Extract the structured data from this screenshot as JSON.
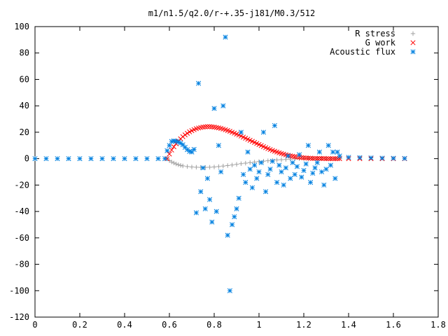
{
  "chart_data": {
    "type": "scatter",
    "title": "m1/n1.5/q2.0/r-+.35-j181/M0.3/512",
    "xlabel": "",
    "ylabel": "",
    "xlim": [
      0,
      1.8
    ],
    "ylim": [
      -120,
      100
    ],
    "x_ticks": [
      "0",
      "0.2",
      "0.4",
      "0.6",
      "0.8",
      "1",
      "1.2",
      "1.4",
      "1.6",
      "1.8"
    ],
    "y_ticks": [
      "-120",
      "-100",
      "-80",
      "-60",
      "-40",
      "-20",
      "0",
      "20",
      "40",
      "60",
      "80",
      "100"
    ],
    "grid": false,
    "legend_position": "top-right",
    "series": [
      {
        "name": "R stress",
        "marker": "plus",
        "color": "#a0a0a0",
        "x": [
          0.59,
          0.6,
          0.61,
          0.62,
          0.63,
          0.64,
          0.65,
          0.66,
          0.68,
          0.7,
          0.72,
          0.74,
          0.76,
          0.78,
          0.8,
          0.82,
          0.84,
          0.86,
          0.88,
          0.9,
          0.92,
          0.94,
          0.96,
          0.98,
          1.0,
          1.02,
          1.04,
          1.06,
          1.08,
          1.1,
          1.12,
          1.14,
          1.16,
          1.18,
          1.2,
          1.22,
          1.24,
          1.26,
          1.28,
          1.3,
          1.32,
          1.34,
          1.36
        ],
        "y": [
          0,
          -1.5,
          -2.5,
          -3.3,
          -4,
          -4.6,
          -5.1,
          -5.5,
          -6,
          -6.3,
          -6.5,
          -6.6,
          -6.6,
          -6.5,
          -6.3,
          -6,
          -5.6,
          -5.2,
          -4.8,
          -4.3,
          -3.8,
          -3.4,
          -3,
          -2.6,
          -2.2,
          -1.9,
          -1.6,
          -1.3,
          -1,
          -0.8,
          -0.6,
          -0.4,
          -0.2,
          0,
          0.2,
          0.3,
          0.4,
          0.4,
          0.4,
          0.3,
          0.2,
          0.1,
          0
        ]
      },
      {
        "name": "G work",
        "marker": "cross",
        "color": "#ff0000",
        "x": [
          0.59,
          0.6,
          0.61,
          0.62,
          0.63,
          0.64,
          0.65,
          0.66,
          0.67,
          0.68,
          0.69,
          0.7,
          0.71,
          0.72,
          0.73,
          0.74,
          0.75,
          0.76,
          0.77,
          0.78,
          0.79,
          0.8,
          0.81,
          0.82,
          0.83,
          0.84,
          0.85,
          0.86,
          0.87,
          0.88,
          0.89,
          0.9,
          0.91,
          0.92,
          0.93,
          0.94,
          0.95,
          0.96,
          0.97,
          0.98,
          0.99,
          1.0,
          1.01,
          1.02,
          1.03,
          1.04,
          1.05,
          1.06,
          1.07,
          1.08,
          1.09,
          1.1,
          1.11,
          1.12,
          1.13,
          1.14,
          1.15,
          1.16,
          1.17,
          1.18,
          1.19,
          1.2,
          1.21,
          1.22,
          1.23,
          1.24,
          1.25,
          1.26,
          1.27,
          1.28,
          1.29,
          1.3,
          1.31,
          1.32,
          1.33,
          1.34,
          1.35,
          1.36,
          1.4,
          1.45,
          1.5,
          1.55,
          1.6,
          1.65
        ],
        "y": [
          0,
          3.5,
          6.5,
          9,
          11.3,
          13.3,
          15,
          16.6,
          18,
          19.2,
          20.3,
          21.2,
          22,
          22.7,
          23.2,
          23.6,
          23.9,
          24.1,
          24.2,
          24.2,
          24.1,
          23.9,
          23.6,
          23.3,
          22.9,
          22.4,
          21.9,
          21.3,
          20.7,
          20,
          19.3,
          18.6,
          17.9,
          17.1,
          16.3,
          15.5,
          14.7,
          13.9,
          13.1,
          12.3,
          11.5,
          10.7,
          9.9,
          9.1,
          8.3,
          7.6,
          6.9,
          6.2,
          5.6,
          5,
          4.4,
          3.9,
          3.4,
          2.9,
          2.5,
          2.1,
          1.8,
          1.5,
          1.2,
          1,
          0.8,
          0.6,
          0.5,
          0.4,
          0.3,
          0.2,
          0.2,
          0.1,
          0.1,
          0.1,
          0.1,
          0,
          0,
          0,
          0,
          0,
          0,
          0,
          0,
          0,
          0,
          0,
          0,
          0
        ]
      },
      {
        "name": "Acoustic flux",
        "marker": "star",
        "color": "#0080e0",
        "x": [
          0,
          0.05,
          0.1,
          0.15,
          0.2,
          0.25,
          0.3,
          0.35,
          0.4,
          0.45,
          0.5,
          0.55,
          0.58,
          0.59,
          0.6,
          0.61,
          0.62,
          0.63,
          0.64,
          0.65,
          0.66,
          0.67,
          0.68,
          0.69,
          0.7,
          0.71,
          0.72,
          0.73,
          0.74,
          0.75,
          0.76,
          0.77,
          0.78,
          0.79,
          0.8,
          0.81,
          0.82,
          0.83,
          0.84,
          0.85,
          0.86,
          0.87,
          0.88,
          0.89,
          0.9,
          0.91,
          0.92,
          0.93,
          0.94,
          0.95,
          0.96,
          0.97,
          0.98,
          0.99,
          1.0,
          1.01,
          1.02,
          1.03,
          1.04,
          1.05,
          1.06,
          1.07,
          1.08,
          1.09,
          1.1,
          1.11,
          1.12,
          1.13,
          1.14,
          1.15,
          1.16,
          1.17,
          1.18,
          1.19,
          1.2,
          1.21,
          1.22,
          1.23,
          1.24,
          1.25,
          1.26,
          1.27,
          1.28,
          1.29,
          1.3,
          1.31,
          1.32,
          1.33,
          1.34,
          1.35,
          1.36,
          1.4,
          1.45,
          1.5,
          1.55,
          1.6,
          1.65
        ],
        "y": [
          0,
          0,
          0,
          0,
          0,
          0,
          0,
          0,
          0,
          0,
          0,
          0,
          0,
          6,
          10,
          13,
          13.5,
          13.2,
          12.6,
          11.8,
          10.5,
          8.6,
          6.8,
          5.5,
          5,
          7,
          -41,
          57,
          -25,
          -7,
          -38,
          -15,
          -31,
          -48,
          38,
          -40,
          10,
          -10,
          40,
          92,
          -58,
          -100,
          -50,
          -44,
          -38,
          -30,
          20,
          -12,
          -18,
          5,
          -8,
          -22,
          -5,
          -15,
          -10,
          -3,
          20,
          -25,
          -12,
          -8,
          -2,
          25,
          -18,
          -5,
          -10,
          -20,
          -7,
          2,
          -15,
          -3,
          -12,
          -6,
          3,
          -14,
          -9,
          -4,
          10,
          -18,
          -11,
          -7,
          -3,
          5,
          -10,
          -20,
          -8,
          10,
          -5,
          5,
          -15,
          5,
          2,
          1,
          0.8,
          0.6,
          0.4,
          0.3,
          0.2
        ]
      }
    ]
  }
}
